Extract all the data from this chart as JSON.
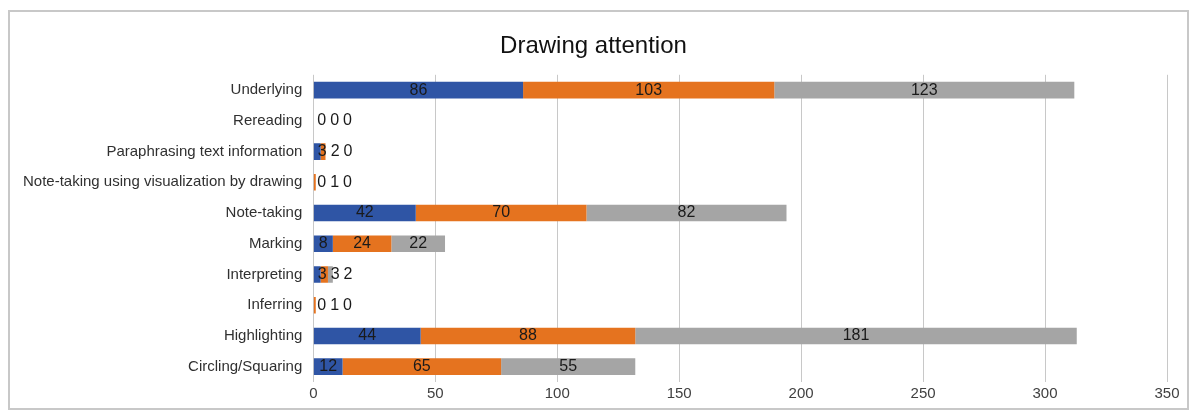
{
  "chart_data": {
    "type": "bar",
    "title": "Drawing attention",
    "orientation": "horizontal",
    "stacked": true,
    "categories": [
      "Underlying",
      "Rereading",
      "Paraphrasing text information",
      "Note-taking using visualization by drawing",
      "Note-taking",
      "Marking",
      "Interpreting",
      "Inferring",
      "Highlighting",
      "Circling/Squaring"
    ],
    "series": [
      {
        "color": "#2f55a5",
        "values": [
          86,
          0,
          3,
          0,
          42,
          8,
          3,
          0,
          44,
          12
        ]
      },
      {
        "color": "#e5731f",
        "values": [
          103,
          0,
          2,
          1,
          70,
          24,
          3,
          1,
          88,
          65
        ]
      },
      {
        "color": "#a5a5a5",
        "values": [
          123,
          0,
          0,
          0,
          82,
          22,
          2,
          0,
          181,
          55
        ]
      }
    ],
    "xlim": [
      0,
      350
    ],
    "xticks": [
      0,
      50,
      100,
      150,
      200,
      250,
      300,
      350
    ],
    "grid": "x",
    "legend": false,
    "data_labels": true
  }
}
